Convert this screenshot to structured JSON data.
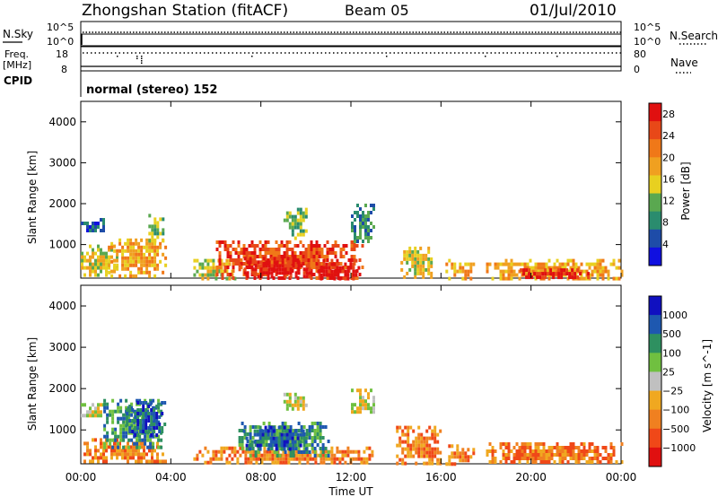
{
  "header": {
    "title": "Zhongshan Station (fitACF)",
    "beam": "Beam 05",
    "date": "01/Jul/2010"
  },
  "params": {
    "nsky_label": "N.Sky",
    "nsearch_label": "N.Search",
    "noise_tick_top": "10^5",
    "noise_tick_bottom": "10^0",
    "freq_label": "Freq.",
    "freq_unit": "[MHz]",
    "freq_tick_top": "18",
    "freq_tick_bottom": "8",
    "nave_label": "Nave",
    "nave_tick_top": "80",
    "nave_tick_bottom": "0",
    "cpid_label": "CPID",
    "cpid_value": "normal (stereo) 152"
  },
  "colors": {
    "power": [
      "#1010e0",
      "#1e4ca8",
      "#2a8c6e",
      "#5aa850",
      "#e8d020",
      "#f0a020",
      "#f07818",
      "#e84818",
      "#e01010"
    ],
    "velocity": [
      "#e01010",
      "#f04818",
      "#f08020",
      "#f0a820",
      "#c0c0c0",
      "#70c040",
      "#2e9060",
      "#1e58b0",
      "#1010c0"
    ]
  },
  "chart_data": [
    {
      "type": "heatmap",
      "title": "Power",
      "ylabel": "Slant Range [km]",
      "xlabel": "Time UT",
      "x_ticks": [
        "00:00",
        "04:00",
        "08:00",
        "12:00",
        "16:00",
        "20:00",
        "00:00"
      ],
      "x_range_hours": [
        0,
        24
      ],
      "y_ticks": [
        1000,
        2000,
        3000,
        4000
      ],
      "y_range_km": [
        180,
        4500
      ],
      "colorbar": {
        "label": "Power [dB]",
        "ticks": [
          "4",
          "8",
          "12",
          "16",
          "20",
          "24",
          "28"
        ],
        "range": [
          0,
          30
        ]
      },
      "echo_regions": [
        {
          "t0": 0.0,
          "t1": 1.0,
          "r0": 1350,
          "r1": 1650,
          "level": 1
        },
        {
          "t0": 0.0,
          "t1": 1.6,
          "r0": 250,
          "r1": 1000,
          "level": 4
        },
        {
          "t0": 1.2,
          "t1": 3.8,
          "r0": 250,
          "r1": 1150,
          "level": 5
        },
        {
          "t0": 3.0,
          "t1": 3.6,
          "r0": 1100,
          "r1": 1750,
          "level": 3
        },
        {
          "t0": 5.0,
          "t1": 6.8,
          "r0": 200,
          "r1": 650,
          "level": 4
        },
        {
          "t0": 6.0,
          "t1": 12.5,
          "r0": 200,
          "r1": 1100,
          "level": 7
        },
        {
          "t0": 7.0,
          "t1": 10.2,
          "r0": 250,
          "r1": 700,
          "level": 8
        },
        {
          "t0": 9.0,
          "t1": 10.0,
          "r0": 1150,
          "r1": 1900,
          "level": 3
        },
        {
          "t0": 12.0,
          "t1": 13.0,
          "r0": 1100,
          "r1": 2000,
          "level": 2
        },
        {
          "t0": 10.5,
          "t1": 12.3,
          "r0": 200,
          "r1": 650,
          "level": 8
        },
        {
          "t0": 14.2,
          "t1": 15.6,
          "r0": 200,
          "r1": 950,
          "level": 4
        },
        {
          "t0": 16.2,
          "t1": 17.5,
          "r0": 200,
          "r1": 650,
          "level": 5
        },
        {
          "t0": 18.0,
          "t1": 24.0,
          "r0": 200,
          "r1": 650,
          "level": 5
        },
        {
          "t0": 19.5,
          "t1": 22.5,
          "r0": 200,
          "r1": 420,
          "level": 8
        }
      ]
    },
    {
      "type": "heatmap",
      "title": "Velocity",
      "ylabel": "Slant Range [km]",
      "xlabel": "Time UT",
      "x_ticks": [
        "00:00",
        "04:00",
        "08:00",
        "12:00",
        "16:00",
        "20:00",
        "00:00"
      ],
      "x_range_hours": [
        0,
        24
      ],
      "y_ticks": [
        1000,
        2000,
        3000,
        4000
      ],
      "y_range_km": [
        180,
        4500
      ],
      "colorbar": {
        "label": "Velocity [m s^-1]",
        "ticks": [
          "1000",
          "500",
          "100",
          "25",
          "-25",
          "-100",
          "-500",
          "-1000"
        ]
      },
      "echo_regions": [
        {
          "t0": 0.0,
          "t1": 1.0,
          "r0": 1350,
          "r1": 1650,
          "level": 4
        },
        {
          "t0": 0.0,
          "t1": 3.8,
          "r0": 250,
          "r1": 800,
          "level": 2
        },
        {
          "t0": 1.0,
          "t1": 3.6,
          "r0": 600,
          "r1": 1750,
          "level": 6
        },
        {
          "t0": 2.0,
          "t1": 3.7,
          "r0": 900,
          "r1": 1700,
          "level": 7
        },
        {
          "t0": 5.0,
          "t1": 13.0,
          "r0": 200,
          "r1": 600,
          "level": 2
        },
        {
          "t0": 7.0,
          "t1": 11.0,
          "r0": 400,
          "r1": 1200,
          "level": 6
        },
        {
          "t0": 7.2,
          "t1": 10.0,
          "r0": 500,
          "r1": 1100,
          "level": 7
        },
        {
          "t0": 9.0,
          "t1": 10.0,
          "r0": 1500,
          "r1": 1900,
          "level": 4
        },
        {
          "t0": 12.0,
          "t1": 13.0,
          "r0": 1400,
          "r1": 2000,
          "level": 4
        },
        {
          "t0": 14.0,
          "t1": 16.0,
          "r0": 200,
          "r1": 1100,
          "level": 2
        },
        {
          "t0": 16.2,
          "t1": 17.5,
          "r0": 200,
          "r1": 650,
          "level": 2
        },
        {
          "t0": 18.0,
          "t1": 24.0,
          "r0": 200,
          "r1": 700,
          "level": 2
        }
      ]
    }
  ]
}
